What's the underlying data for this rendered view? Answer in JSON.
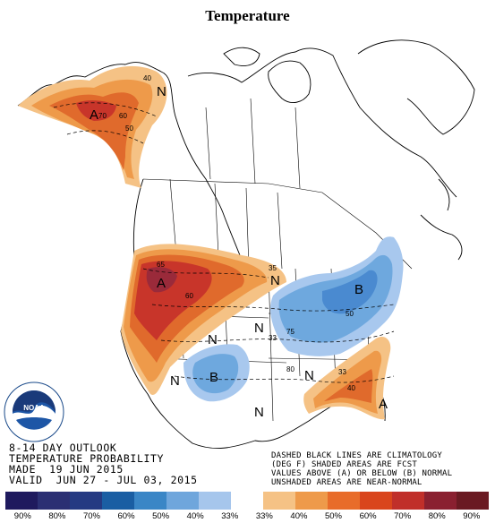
{
  "title": "Temperature",
  "info_lines": [
    "8-14 DAY OUTLOOK",
    "TEMPERATURE PROBABILITY",
    "MADE  19 JUN 2015",
    "VALID  JUN 27 - JUL 03, 2015"
  ],
  "climatology_note": [
    "DASHED BLACK LINES ARE CLIMATOLOGY",
    "(DEG F) SHADED AREAS ARE FCST",
    "VALUES ABOVE (A) OR BELOW (B) NORMAL",
    "UNSHADED AREAS ARE NEAR-NORMAL"
  ],
  "map_labels": {
    "above": "A",
    "below": "B",
    "near_normal": "N"
  },
  "contour_values": [
    "40",
    "50",
    "60",
    "70",
    "80",
    "65",
    "35",
    "75",
    "33"
  ],
  "legend": {
    "colors": [
      "#1f1a5e",
      "#2b2f73",
      "#253a82",
      "#1a5ea3",
      "#3a86c6",
      "#6fa6dc",
      "#a6c6ec",
      "#ffffff",
      "#f5c285",
      "#ee9a4a",
      "#e86c2a",
      "#d9451c",
      "#c02f2a",
      "#8a2030",
      "#6a1a22"
    ],
    "labels": [
      "90%",
      "80%",
      "70%",
      "60%",
      "50%",
      "40%",
      "33%",
      "33%",
      "40%",
      "50%",
      "60%",
      "70%",
      "80%",
      "90%"
    ]
  },
  "colors": {
    "above_light": "#f5c285",
    "above_mid": "#ee9a4a",
    "above_strong": "#e06a2c",
    "above_dark": "#c8352a",
    "above_max": "#8a2a3a",
    "below_light": "#a8c8ee",
    "below_mid": "#6ea8de",
    "below_strong": "#4a8ad0"
  },
  "logo_text": "NOAA"
}
